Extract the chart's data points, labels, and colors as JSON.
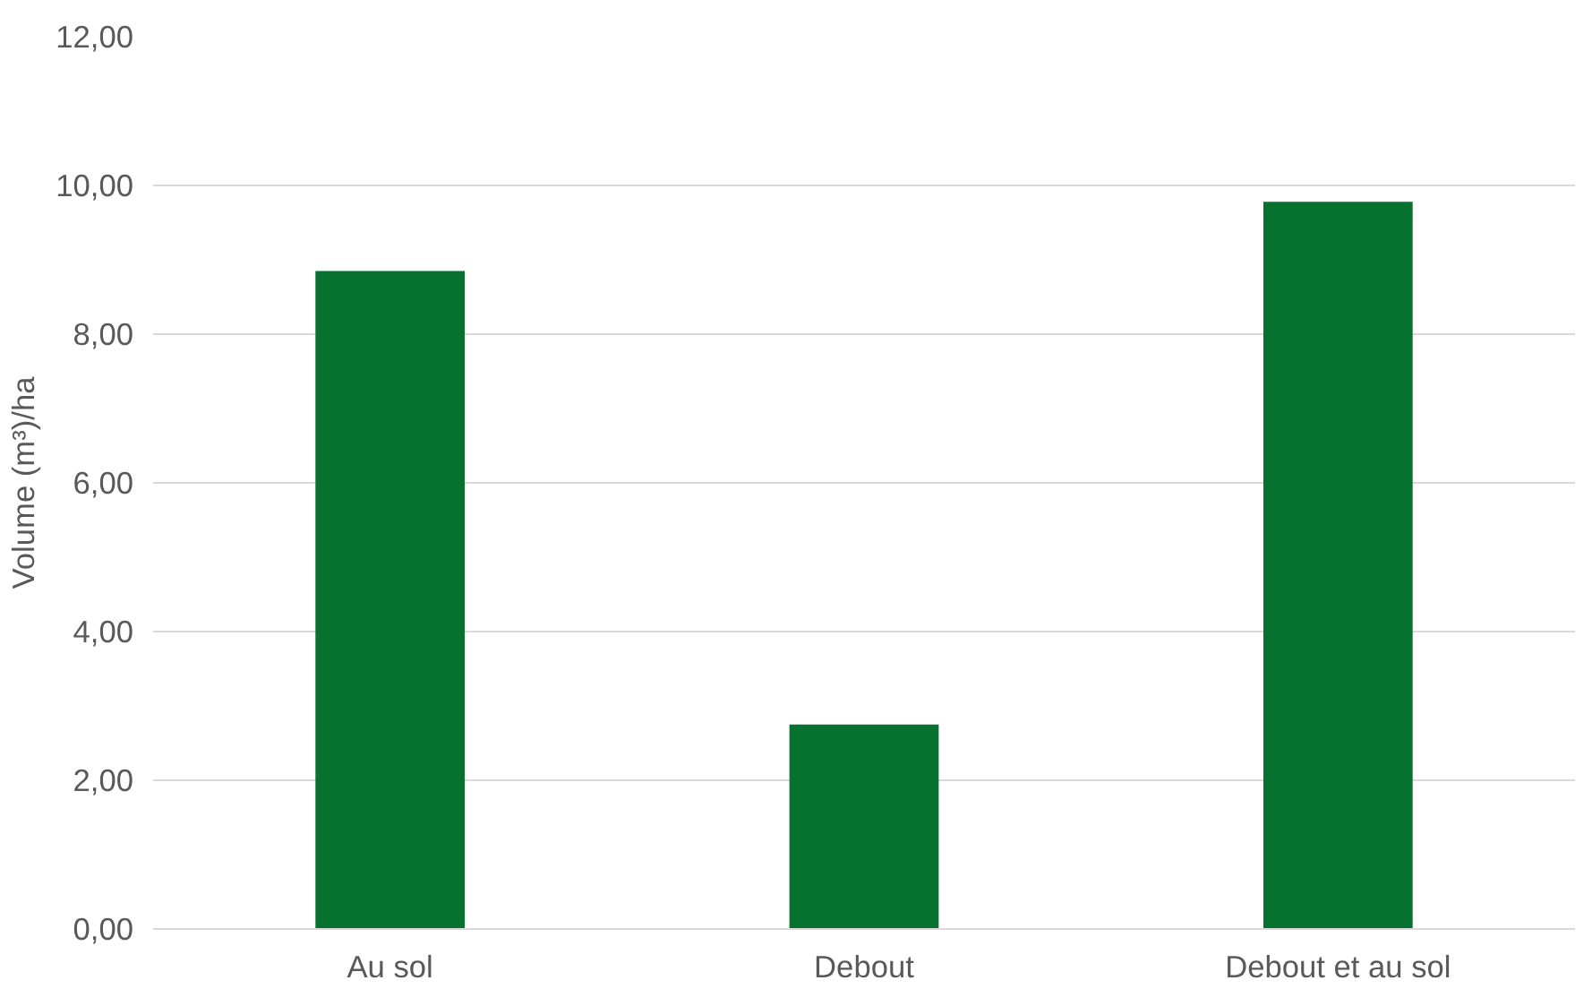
{
  "chart_data": {
    "type": "bar",
    "ylabel": "Volume (m³)/ha",
    "categories": [
      "Au sol",
      "Debout",
      "Debout et au sol"
    ],
    "values": [
      8.85,
      2.75,
      9.78
    ],
    "color": "#077230",
    "ylim": [
      0,
      12
    ],
    "yticks": [
      {
        "value": 0,
        "label": "0,00"
      },
      {
        "value": 2,
        "label": "2,00"
      },
      {
        "value": 4,
        "label": "4,00"
      },
      {
        "value": 6,
        "label": "6,00"
      },
      {
        "value": 8,
        "label": "8,00"
      },
      {
        "value": 10,
        "label": "10,00"
      },
      {
        "value": 12,
        "label": "12,00"
      }
    ],
    "grid": "y"
  }
}
